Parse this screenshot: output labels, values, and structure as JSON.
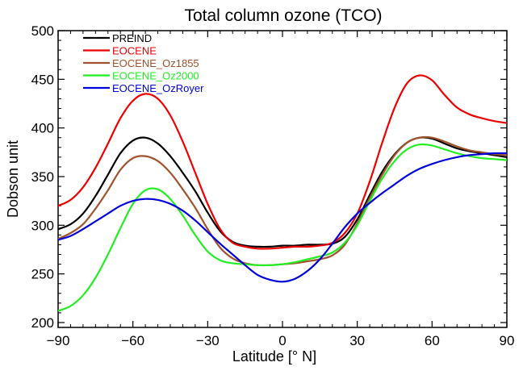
{
  "chart_data": {
    "type": "line",
    "title": "Total column ozone (TCO)",
    "xlabel": "Latitude [° N]",
    "ylabel": "Dobson unit",
    "xlim": [
      -90,
      90
    ],
    "ylim": [
      195,
      500
    ],
    "xticks": [
      -90,
      -60,
      -30,
      0,
      30,
      60,
      90
    ],
    "yticks": [
      200,
      250,
      300,
      350,
      400,
      450,
      500
    ],
    "grid": false,
    "legend_position": "top-left",
    "series": [
      {
        "name": "PREIND",
        "color": "#000000",
        "x": [
          -90,
          -85,
          -80,
          -75,
          -70,
          -65,
          -60,
          -55,
          -50,
          -45,
          -40,
          -35,
          -30,
          -25,
          -20,
          -15,
          -10,
          -5,
          0,
          5,
          10,
          15,
          20,
          25,
          30,
          35,
          40,
          45,
          50,
          55,
          60,
          65,
          70,
          75,
          80,
          85,
          90
        ],
        "values": [
          296,
          301,
          312,
          330,
          352,
          374,
          387,
          390,
          384,
          371,
          354,
          335,
          313,
          294,
          283,
          279,
          278,
          278,
          279,
          279,
          280,
          280,
          281,
          288,
          306,
          331,
          355,
          373,
          385,
          390,
          389,
          384,
          379,
          376,
          374,
          372,
          370
        ]
      },
      {
        "name": "EOCENE",
        "color": "#ee0000",
        "x": [
          -90,
          -85,
          -80,
          -75,
          -70,
          -65,
          -60,
          -55,
          -50,
          -45,
          -40,
          -35,
          -30,
          -25,
          -20,
          -15,
          -10,
          -5,
          0,
          5,
          10,
          15,
          20,
          25,
          30,
          35,
          40,
          45,
          50,
          55,
          60,
          65,
          70,
          75,
          80,
          85,
          90
        ],
        "values": [
          320,
          326,
          339,
          359,
          384,
          410,
          428,
          435,
          430,
          413,
          386,
          354,
          322,
          296,
          282,
          278,
          276,
          276,
          277,
          278,
          278,
          279,
          282,
          292,
          312,
          345,
          385,
          421,
          446,
          454,
          449,
          434,
          421,
          414,
          410,
          407,
          405
        ]
      },
      {
        "name": "EOCENE_Oz1855",
        "color": "#a0522d",
        "x": [
          -90,
          -85,
          -80,
          -75,
          -70,
          -65,
          -60,
          -55,
          -50,
          -45,
          -40,
          -35,
          -30,
          -25,
          -20,
          -15,
          -10,
          -5,
          0,
          5,
          10,
          15,
          20,
          25,
          30,
          35,
          40,
          45,
          50,
          55,
          60,
          65,
          70,
          75,
          80,
          85,
          90
        ],
        "values": [
          286,
          292,
          301,
          317,
          336,
          357,
          369,
          371,
          366,
          354,
          337,
          318,
          296,
          277,
          266,
          261,
          259,
          259,
          260,
          261,
          263,
          265,
          269,
          280,
          302,
          328,
          352,
          372,
          385,
          390,
          390,
          386,
          381,
          377,
          375,
          373,
          372
        ]
      },
      {
        "name": "EOCENE_Oz2000",
        "color": "#22ee22",
        "x": [
          -90,
          -85,
          -80,
          -75,
          -70,
          -65,
          -60,
          -55,
          -50,
          -45,
          -40,
          -35,
          -30,
          -25,
          -20,
          -15,
          -10,
          -5,
          0,
          5,
          10,
          15,
          20,
          25,
          30,
          35,
          40,
          45,
          50,
          55,
          60,
          65,
          70,
          75,
          80,
          85,
          90
        ],
        "values": [
          212,
          217,
          228,
          246,
          270,
          297,
          322,
          336,
          337,
          327,
          310,
          290,
          273,
          264,
          261,
          260,
          259,
          259,
          260,
          262,
          265,
          268,
          272,
          282,
          300,
          325,
          348,
          366,
          378,
          383,
          382,
          378,
          374,
          371,
          369,
          368,
          367
        ]
      },
      {
        "name": "EOCENE_OzRoyer",
        "color": "#0000dd",
        "x": [
          -90,
          -85,
          -80,
          -75,
          -70,
          -65,
          -60,
          -55,
          -50,
          -45,
          -40,
          -35,
          -30,
          -25,
          -20,
          -15,
          -10,
          -5,
          0,
          5,
          10,
          15,
          20,
          25,
          30,
          35,
          40,
          45,
          50,
          55,
          60,
          65,
          70,
          75,
          80,
          85,
          90
        ],
        "values": [
          285,
          289,
          296,
          304,
          312,
          320,
          325,
          327,
          326,
          322,
          315,
          305,
          293,
          281,
          270,
          259,
          249,
          244,
          242,
          245,
          253,
          265,
          281,
          298,
          312,
          323,
          333,
          342,
          351,
          358,
          363,
          367,
          370,
          372,
          373,
          374,
          374
        ]
      }
    ]
  }
}
